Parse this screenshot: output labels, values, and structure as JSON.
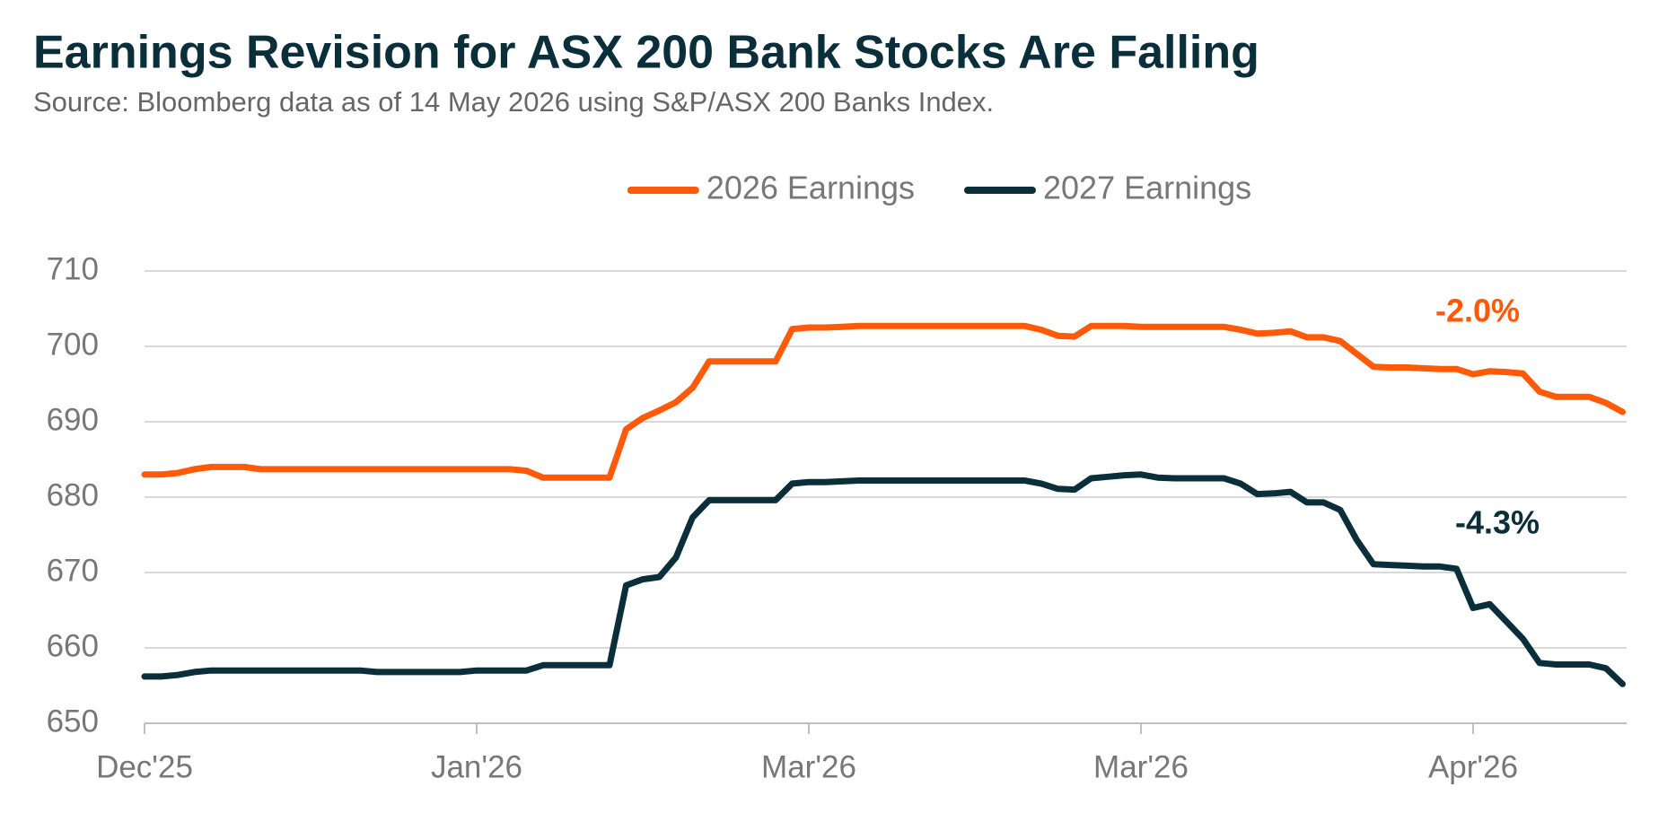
{
  "chart_data": {
    "type": "line",
    "title": "Earnings Revision for ASX 200 Bank Stocks Are Falling",
    "subtitle": "Source: Bloomberg data as of 14 May 2026 using S&P/ASX 200 Banks Index.",
    "categories": [
      "Dec'25",
      null,
      null,
      null,
      null,
      null,
      null,
      null,
      null,
      null,
      null,
      null,
      null,
      null,
      null,
      null,
      null,
      null,
      null,
      null,
      "Jan'26",
      null,
      null,
      null,
      null,
      null,
      null,
      null,
      null,
      null,
      null,
      null,
      null,
      null,
      null,
      null,
      null,
      null,
      null,
      null,
      "Mar'26",
      null,
      null,
      null,
      null,
      null,
      null,
      null,
      null,
      null,
      null,
      null,
      null,
      null,
      null,
      null,
      null,
      null,
      null,
      null,
      "Mar'26",
      null,
      null,
      null,
      null,
      null,
      null,
      null,
      null,
      null,
      null,
      null,
      null,
      null,
      null,
      null,
      null,
      null,
      null,
      null,
      "Apr'26",
      null,
      null,
      null,
      null,
      null,
      null,
      null,
      null,
      null
    ],
    "series": [
      {
        "name": "2026 Earnings",
        "color": "#ff5a0a",
        "values": [
          683,
          683,
          683.2,
          683.7,
          684,
          684,
          684,
          683.7,
          683.7,
          683.7,
          683.7,
          683.7,
          683.7,
          683.7,
          683.7,
          683.7,
          683.7,
          683.7,
          683.7,
          683.7,
          683.7,
          683.7,
          683.7,
          683.5,
          682.6,
          682.6,
          682.6,
          682.6,
          682.6,
          689,
          690.5,
          691.5,
          692.6,
          694.5,
          698,
          698,
          698,
          698,
          698,
          702.3,
          702.5,
          702.5,
          702.6,
          702.7,
          702.7,
          702.7,
          702.7,
          702.7,
          702.7,
          702.7,
          702.7,
          702.7,
          702.7,
          702.7,
          702.2,
          701.4,
          701.3,
          702.7,
          702.7,
          702.7,
          702.6,
          702.6,
          702.6,
          702.6,
          702.6,
          702.6,
          702.2,
          701.7,
          701.8,
          702,
          701.2,
          701.2,
          700.7,
          699,
          697.3,
          697.2,
          697.2,
          697.1,
          697,
          697,
          696.3,
          696.7,
          696.6,
          696.4,
          694,
          693.3,
          693.3,
          693.3,
          692.5,
          691.3
        ]
      },
      {
        "name": "2027 Earnings",
        "color": "#0b2f3a",
        "values": [
          656.2,
          656.2,
          656.4,
          656.8,
          657,
          657,
          657,
          657,
          657,
          657,
          657,
          657,
          657,
          657,
          656.8,
          656.8,
          656.8,
          656.8,
          656.8,
          656.8,
          657,
          657,
          657,
          657,
          657.7,
          657.7,
          657.7,
          657.7,
          657.7,
          668.3,
          669.1,
          669.4,
          672,
          677.3,
          679.6,
          679.6,
          679.6,
          679.6,
          679.6,
          681.8,
          682,
          682,
          682.1,
          682.2,
          682.2,
          682.2,
          682.2,
          682.2,
          682.2,
          682.2,
          682.2,
          682.2,
          682.2,
          682.2,
          681.8,
          681.1,
          681,
          682.5,
          682.7,
          682.9,
          683,
          682.6,
          682.5,
          682.5,
          682.5,
          682.5,
          681.8,
          680.4,
          680.5,
          680.7,
          679.3,
          679.3,
          678.3,
          674.3,
          671.1,
          671,
          670.9,
          670.8,
          670.8,
          670.5,
          665.3,
          665.8,
          663.5,
          661.2,
          658,
          657.8,
          657.8,
          657.8,
          657.3,
          655.2
        ]
      }
    ],
    "annotations": [
      {
        "text": "-2.0%",
        "color": "#ff5a0a"
      },
      {
        "text": "-4.3%",
        "color": "#0b2f3a"
      }
    ],
    "ylim": [
      650,
      710
    ],
    "yticks": [
      650,
      660,
      670,
      680,
      690,
      700,
      710
    ],
    "grid": true,
    "legend": "top"
  }
}
